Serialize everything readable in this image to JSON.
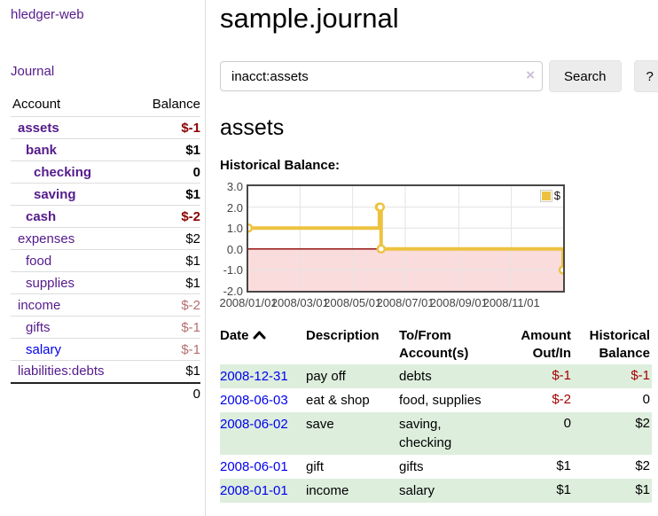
{
  "sidebar": {
    "brand": "hledger-web",
    "journal_link": "Journal",
    "accounts_table": {
      "account_header": "Account",
      "balance_header": "Balance",
      "rows": [
        {
          "name": "assets",
          "depth": 1,
          "balance": "$-1",
          "bold": true,
          "balance_tone": "neg-strong",
          "link_color": "purple"
        },
        {
          "name": "bank",
          "depth": 2,
          "balance": "$1",
          "bold": true,
          "balance_tone": "",
          "link_color": "purple"
        },
        {
          "name": "checking",
          "depth": 3,
          "balance": "0",
          "bold": true,
          "balance_tone": "",
          "link_color": "purple"
        },
        {
          "name": "saving",
          "depth": 3,
          "balance": "$1",
          "bold": true,
          "balance_tone": "",
          "link_color": "purple"
        },
        {
          "name": "cash",
          "depth": 2,
          "balance": "$-2",
          "bold": true,
          "balance_tone": "neg-strong",
          "link_color": "purple"
        },
        {
          "name": "expenses",
          "depth": 1,
          "balance": "$2",
          "bold": false,
          "balance_tone": "",
          "link_color": "purple"
        },
        {
          "name": "food",
          "depth": 2,
          "balance": "$1",
          "bold": false,
          "balance_tone": "",
          "link_color": "purple"
        },
        {
          "name": "supplies",
          "depth": 2,
          "balance": "$1",
          "bold": false,
          "balance_tone": "",
          "link_color": "purple"
        },
        {
          "name": "income",
          "depth": 1,
          "balance": "$-2",
          "bold": false,
          "balance_tone": "neg-soft",
          "link_color": "purple"
        },
        {
          "name": "gifts",
          "depth": 2,
          "balance": "$-1",
          "bold": false,
          "balance_tone": "neg-soft",
          "link_color": "purple"
        },
        {
          "name": "salary",
          "depth": 2,
          "balance": "$-1",
          "bold": false,
          "balance_tone": "neg-soft",
          "link_color": "blue"
        },
        {
          "name": "liabilities:debts",
          "depth": 1,
          "balance": "$1",
          "bold": false,
          "balance_tone": "",
          "link_color": "purple"
        }
      ],
      "total": "0"
    }
  },
  "header": {
    "title": "sample.journal"
  },
  "search": {
    "value": "inacct:assets",
    "clear_icon": "×",
    "button_label": "Search",
    "help_label": "?"
  },
  "account_page": {
    "title": "assets",
    "chart_label": "Historical Balance:"
  },
  "chart_data": {
    "type": "line",
    "step": true,
    "title": "Historical Balance",
    "series": [
      {
        "name": "$",
        "color": "#edc240",
        "points": [
          {
            "x": "2008-01-01",
            "y": 1
          },
          {
            "x": "2008-06-01",
            "y": 2
          },
          {
            "x": "2008-06-02",
            "y": 2
          },
          {
            "x": "2008-06-03",
            "y": 0
          },
          {
            "x": "2008-12-31",
            "y": -1
          }
        ]
      }
    ],
    "xlim": [
      "2008-01-01",
      "2008-12-31"
    ],
    "ylim": [
      -2,
      3
    ],
    "yticks": [
      "3.0",
      "2.0",
      "1.0",
      "0.0",
      "-1.0",
      "-2.0"
    ],
    "xticks": [
      "2008/01/01",
      "2008/03/01",
      "2008/05/01",
      "2008/07/01",
      "2008/09/01",
      "2008/11/01"
    ],
    "grid": true,
    "gridline_color": "#e3e3e3",
    "negative_region_color": "#fbdcdc",
    "zero_line_color": "#8b0000",
    "legend_position": "top-right",
    "legend_label": "$"
  },
  "register": {
    "headers": {
      "date": "Date",
      "description": "Description",
      "accounts": "To/From Account(s)",
      "amount": "Amount Out/In",
      "balance": "Historical Balance"
    },
    "sort_icon": "chevron-up",
    "rows": [
      {
        "date": "2008-12-31",
        "description": "pay off",
        "accounts": "debts",
        "amount": "$-1",
        "balance": "$-1",
        "green": true
      },
      {
        "date": "2008-06-03",
        "description": "eat & shop",
        "accounts": "food, supplies",
        "amount": "$-2",
        "balance": "0",
        "green": false
      },
      {
        "date": "2008-06-02",
        "description": "save",
        "accounts": "saving,\nchecking",
        "amount": "0",
        "balance": "$2",
        "green": true
      },
      {
        "date": "2008-06-01",
        "description": "gift",
        "accounts": "gifts",
        "amount": "$1",
        "balance": "$2",
        "green": false
      },
      {
        "date": "2008-01-01",
        "description": "income",
        "accounts": "salary",
        "amount": "$1",
        "balance": "$1",
        "green": true
      }
    ]
  },
  "theme": {
    "link_purple": "#551a8b",
    "link_blue": "#0000ee",
    "negative_strong": "#8b0000",
    "negative_soft": "#b56e6e",
    "register_negative": "#a40000",
    "row_green": "#ddeedd",
    "series_gold": "#edc240"
  }
}
